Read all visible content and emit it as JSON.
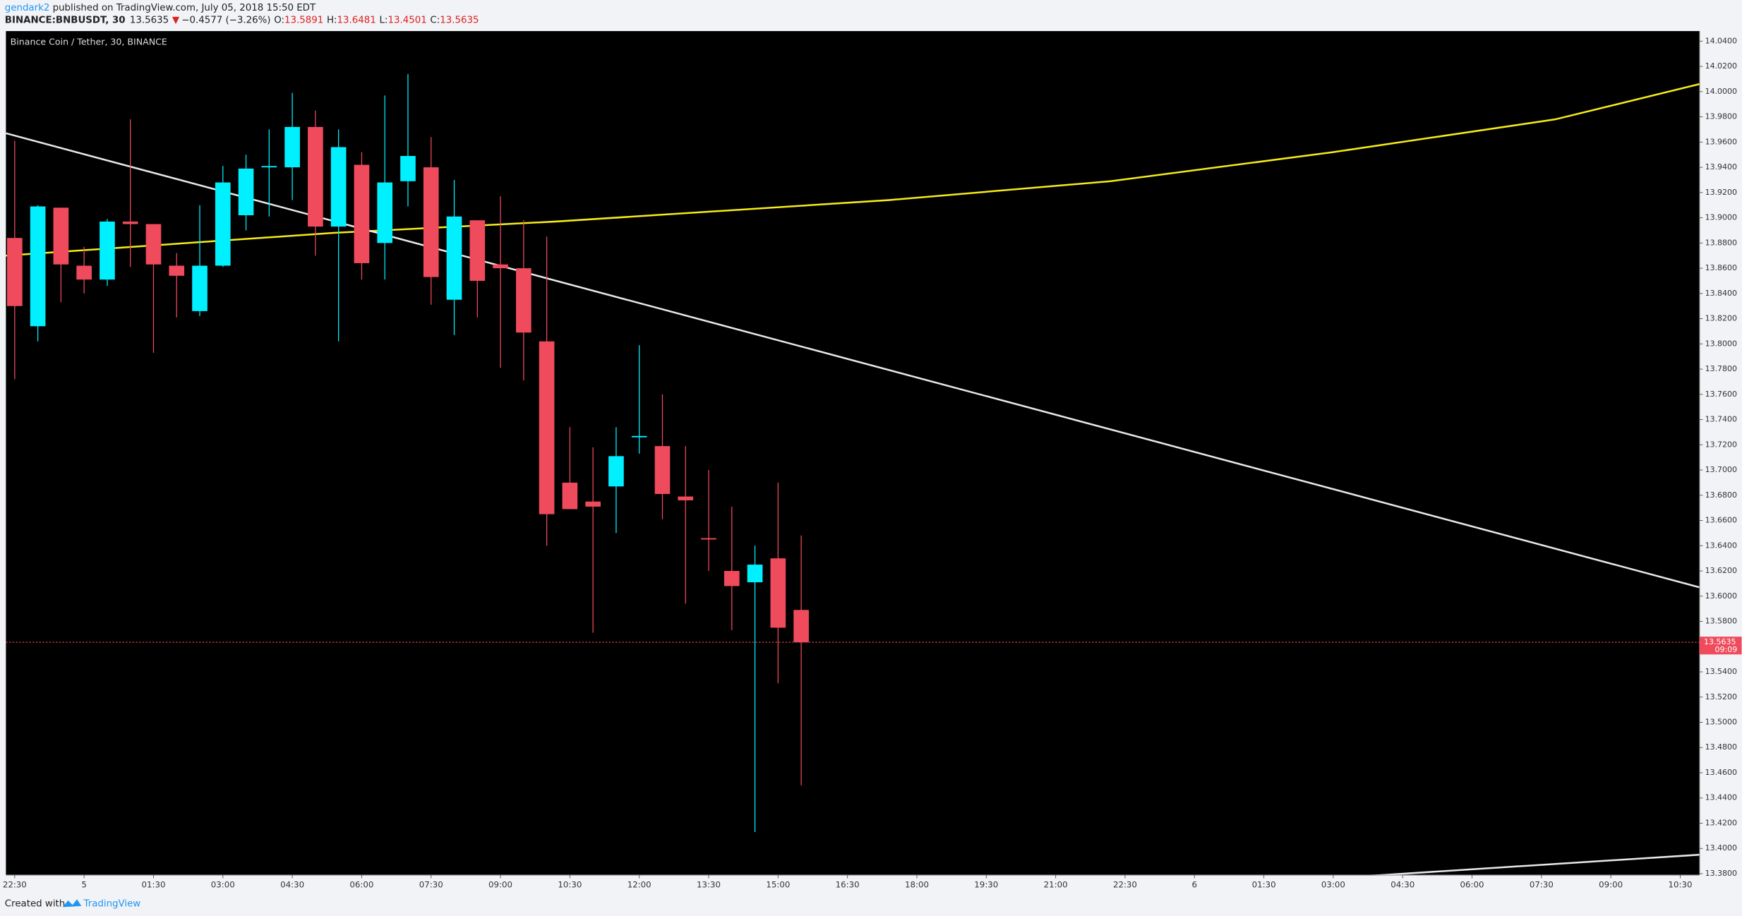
{
  "header": {
    "author": "gendark2",
    "published": " published on TradingView.com, July 05, 2018 15:50 EDT",
    "symbol": "BINANCE:BNBUSDT, 30",
    "arrow": "▼",
    "change": "−0.4577 (−3.26%)",
    "open_label": "O:",
    "high_label": "H:",
    "low_label": "L:",
    "close_label": "C:"
  },
  "footer": {
    "created": "Created with",
    "brand": "TradingView"
  },
  "chart_data": {
    "type": "candlestick",
    "title": "Binance Coin / Tether, 30, BINANCE",
    "x": [
      0,
      1,
      2,
      3,
      4,
      5,
      6,
      7,
      8,
      9,
      10,
      11,
      12,
      13,
      14,
      15,
      16,
      17,
      18,
      19,
      20,
      21,
      22,
      23,
      24,
      25,
      26,
      27,
      28,
      29,
      30,
      31,
      32,
      33,
      34
    ],
    "open": [
      13.884,
      13.814,
      13.908,
      13.862,
      13.851,
      13.897,
      13.895,
      13.862,
      13.826,
      13.862,
      13.902,
      13.94,
      13.94,
      13.972,
      13.893,
      13.942,
      13.88,
      13.929,
      13.94,
      13.835,
      13.898,
      13.863,
      13.86,
      13.802,
      13.69,
      13.675,
      13.687,
      13.726,
      13.719,
      13.679,
      13.646,
      13.62,
      13.611,
      13.63,
      13.5891
    ],
    "high": [
      13.961,
      13.91,
      13.908,
      13.877,
      13.899,
      13.978,
      13.895,
      13.872,
      13.91,
      13.941,
      13.95,
      13.97,
      13.999,
      13.985,
      13.97,
      13.952,
      13.997,
      14.014,
      13.964,
      13.93,
      13.898,
      13.917,
      13.898,
      13.885,
      13.734,
      13.718,
      13.734,
      13.799,
      13.76,
      13.719,
      13.7,
      13.671,
      13.64,
      13.69,
      13.6481
    ],
    "low": [
      13.772,
      13.802,
      13.833,
      13.84,
      13.846,
      13.861,
      13.793,
      13.821,
      13.822,
      13.861,
      13.89,
      13.901,
      13.914,
      13.87,
      13.802,
      13.851,
      13.851,
      13.909,
      13.831,
      13.807,
      13.821,
      13.781,
      13.771,
      13.64,
      13.669,
      13.571,
      13.65,
      13.713,
      13.661,
      13.594,
      13.62,
      13.573,
      13.413,
      13.531,
      13.4501
    ],
    "close": [
      13.83,
      13.909,
      13.863,
      13.851,
      13.897,
      13.895,
      13.863,
      13.854,
      13.862,
      13.928,
      13.939,
      13.941,
      13.972,
      13.893,
      13.956,
      13.864,
      13.928,
      13.949,
      13.853,
      13.901,
      13.85,
      13.86,
      13.809,
      13.665,
      13.669,
      13.671,
      13.711,
      13.727,
      13.681,
      13.676,
      13.645,
      13.608,
      13.625,
      13.575,
      13.5635
    ],
    "up_color": "#00f0ff",
    "down_color": "#ef4b5c",
    "xlim": [
      -0.38,
      72.83
    ],
    "ylim": [
      13.379,
      14.048
    ],
    "xticks": [
      {
        "value": 0,
        "label": "22:30"
      },
      {
        "value": 3,
        "label": "5"
      },
      {
        "value": 6,
        "label": "01:30"
      },
      {
        "value": 9,
        "label": "03:00"
      },
      {
        "value": 12,
        "label": "04:30"
      },
      {
        "value": 15,
        "label": "06:00"
      },
      {
        "value": 18,
        "label": "07:30"
      },
      {
        "value": 21,
        "label": "09:00"
      },
      {
        "value": 24,
        "label": "10:30"
      },
      {
        "value": 27,
        "label": "12:00"
      },
      {
        "value": 30,
        "label": "13:30"
      },
      {
        "value": 33,
        "label": "15:00"
      },
      {
        "value": 36,
        "label": "16:30"
      },
      {
        "value": 39,
        "label": "18:00"
      },
      {
        "value": 42,
        "label": "19:30"
      },
      {
        "value": 45,
        "label": "21:00"
      },
      {
        "value": 48,
        "label": "22:30"
      },
      {
        "value": 51,
        "label": "6"
      },
      {
        "value": 54,
        "label": "01:30"
      },
      {
        "value": 57,
        "label": "03:00"
      },
      {
        "value": 60,
        "label": "04:30"
      },
      {
        "value": 63,
        "label": "06:00"
      },
      {
        "value": 66,
        "label": "07:30"
      },
      {
        "value": 69,
        "label": "09:00"
      },
      {
        "value": 72,
        "label": "10:30"
      }
    ],
    "yticks": [
      {
        "value": 14.04,
        "label": "14.0400"
      },
      {
        "value": 14.02,
        "label": "14.0200"
      },
      {
        "value": 14,
        "label": "14.0000"
      },
      {
        "value": 13.98,
        "label": "13.9800"
      },
      {
        "value": 13.96,
        "label": "13.9600"
      },
      {
        "value": 13.94,
        "label": "13.9400"
      },
      {
        "value": 13.92,
        "label": "13.9200"
      },
      {
        "value": 13.9,
        "label": "13.9000"
      },
      {
        "value": 13.88,
        "label": "13.8800"
      },
      {
        "value": 13.86,
        "label": "13.8600"
      },
      {
        "value": 13.84,
        "label": "13.8400"
      },
      {
        "value": 13.82,
        "label": "13.8200"
      },
      {
        "value": 13.8,
        "label": "13.8000"
      },
      {
        "value": 13.78,
        "label": "13.7800"
      },
      {
        "value": 13.76,
        "label": "13.7600"
      },
      {
        "value": 13.74,
        "label": "13.7400"
      },
      {
        "value": 13.72,
        "label": "13.7200"
      },
      {
        "value": 13.7,
        "label": "13.7000"
      },
      {
        "value": 13.68,
        "label": "13.6800"
      },
      {
        "value": 13.66,
        "label": "13.6600"
      },
      {
        "value": 13.64,
        "label": "13.6400"
      },
      {
        "value": 13.62,
        "label": "13.6200"
      },
      {
        "value": 13.6,
        "label": "13.6000"
      },
      {
        "value": 13.58,
        "label": "13.5800"
      },
      {
        "value": 13.56,
        "label": "13.5600"
      },
      {
        "value": 13.54,
        "label": "13.5400"
      },
      {
        "value": 13.52,
        "label": "13.5200"
      },
      {
        "value": 13.5,
        "label": "13.5000"
      },
      {
        "value": 13.48,
        "label": "13.4800"
      },
      {
        "value": 13.46,
        "label": "13.4600"
      },
      {
        "value": 13.44,
        "label": "13.4400"
      },
      {
        "value": 13.42,
        "label": "13.4200"
      },
      {
        "value": 13.4,
        "label": "13.4000"
      },
      {
        "value": 13.38,
        "label": "13.3800"
      }
    ],
    "overlays": [
      {
        "color": "#f5eb1a",
        "x": [
          -0.38,
          13.78,
          23.38,
          37.78,
          47.38,
          56.98,
          66.59,
          72.83
        ],
        "y": [
          13.87,
          13.888,
          13.897,
          13.914,
          13.929,
          13.952,
          13.978,
          14.006
        ]
      },
      {
        "color": "#e8e8e8",
        "x": [
          -0.38,
          72.83
        ],
        "y": [
          13.967,
          13.607
        ]
      },
      {
        "color": "#e8e8e8",
        "x": [
          57.5,
          72.83
        ],
        "y": [
          13.377,
          13.395
        ]
      }
    ],
    "last_price_color": "#ef4b5c",
    "countdown": "09:09"
  }
}
